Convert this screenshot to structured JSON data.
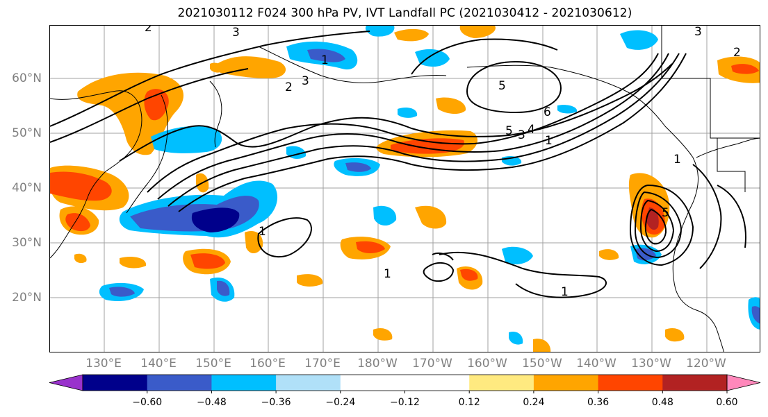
{
  "title": "2021030112 F024 300 hPa PV, IVT Landfall PC (2021030412 - 2021030612)",
  "axes": {
    "lat_labels": [
      "60°N",
      "50°N",
      "40°N",
      "30°N",
      "20°N"
    ],
    "lon_labels": [
      "130°E",
      "140°E",
      "150°E",
      "160°E",
      "170°E",
      "180°W",
      "170°W",
      "160°W",
      "150°W",
      "140°W",
      "130°W",
      "120°W"
    ]
  },
  "colorbar": {
    "colors": [
      "#9932cc",
      "#00008b",
      "#3a5bc9",
      "#00bfff",
      "#b0e0f8",
      "#ffffff",
      "#ffffff",
      "#ffea80",
      "#ffa500",
      "#ff4500",
      "#b22222",
      "#ff88bb"
    ],
    "tick_labels": [
      "−0.60",
      "−0.48",
      "−0.36",
      "−0.24",
      "−0.12",
      "0.12",
      "0.24",
      "0.36",
      "0.48",
      "0.60"
    ]
  },
  "contour_labels": {
    "nw_2": "2",
    "nw_3": "3",
    "n_1": "1",
    "n_2": "2",
    "n_3": "3",
    "ne_5": "5",
    "jet_6": "6",
    "jet_5": "5",
    "jet_3": "3",
    "jet_4": "4",
    "jet_1": "1",
    "ne_3": "3",
    "ne_2": "2",
    "w_1": "1",
    "c_1": "1",
    "s_1": "1",
    "e_1": "1",
    "e_5": "5"
  }
}
